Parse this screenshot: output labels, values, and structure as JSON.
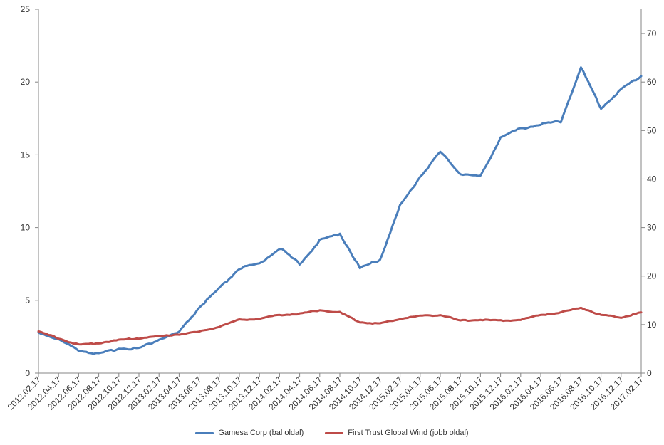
{
  "chart_data": {
    "type": "line",
    "title": "",
    "xlabel": "",
    "ylabel": "",
    "x": [
      "2012.02.17",
      "2012.04.17",
      "2012.06.17",
      "2012.08.17",
      "2012.10.17",
      "2012.12.17",
      "2013.02.17",
      "2013.04.17",
      "2013.06.17",
      "2013.08.17",
      "2013.10.17",
      "2013.12.17",
      "2014.02.17",
      "2014.04.17",
      "2014.06.17",
      "2014.08.17",
      "2014.10.17",
      "2014.12.17",
      "2015.02.17",
      "2015.04.17",
      "2015.06.17",
      "2015.08.17",
      "2015.10.17",
      "2015.12.17",
      "2016.02.17",
      "2016.04.17",
      "2016.06.17",
      "2016.08.17",
      "2016.10.17",
      "2016.12.17",
      "2017.02.17"
    ],
    "y_left": {
      "min": 0,
      "max": 25,
      "ticks": [
        "0",
        "5",
        "10",
        "15",
        "20",
        "25"
      ]
    },
    "y_right": {
      "min": 0,
      "max": 75,
      "ticks": [
        "0",
        "10",
        "20",
        "30",
        "40",
        "50",
        "60",
        "70"
      ]
    },
    "grid": false,
    "legend_position": "bottom",
    "series": [
      {
        "name": "Gamesa Corp (bal oldal)",
        "axis": "left",
        "color": "#4a7ebb",
        "values": [
          2.8,
          2.3,
          1.6,
          1.3,
          1.7,
          1.7,
          2.3,
          2.8,
          4.5,
          5.8,
          7.2,
          7.5,
          8.6,
          7.5,
          9.1,
          9.6,
          7.2,
          7.8,
          11.5,
          13.5,
          15.2,
          13.7,
          13.5,
          16.2,
          16.8,
          17.1,
          17.3,
          21.0,
          18.2,
          19.5,
          20.4
        ]
      },
      {
        "name": "First Trust Global Wind (jobb oldal)",
        "axis": "right",
        "color": "#be4b48",
        "values": [
          8.5,
          7.2,
          5.8,
          6.2,
          6.8,
          7.2,
          7.6,
          8.0,
          8.5,
          9.6,
          11.0,
          11.2,
          12.0,
          12.2,
          13.0,
          12.5,
          10.5,
          10.2,
          11.2,
          11.8,
          12.0,
          10.8,
          11.0,
          10.8,
          11.0,
          12.0,
          12.5,
          13.5,
          12.0,
          11.5,
          12.5
        ]
      }
    ]
  }
}
